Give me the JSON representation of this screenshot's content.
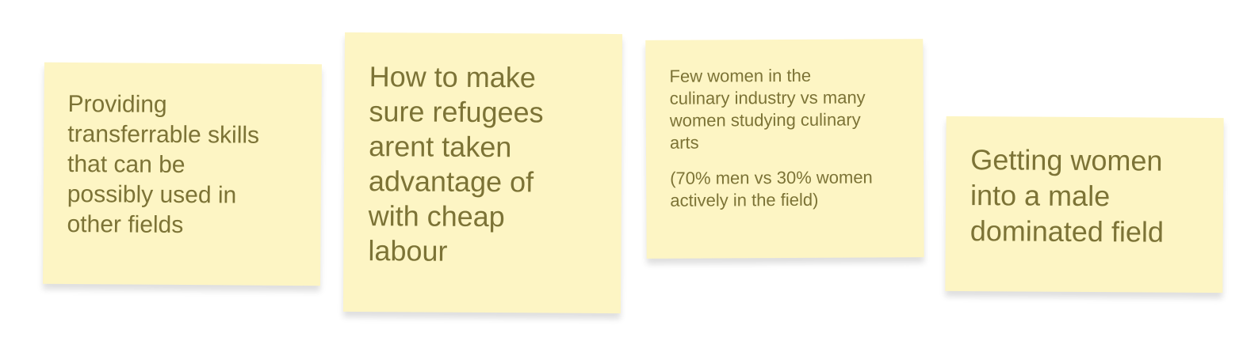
{
  "notes": [
    {
      "text": "Providing\ntransferrable skills\nthat can be\npossibly used in\nother fields"
    },
    {
      "text": "How to make\nsure refugees\narent taken\nadvantage of\nwith cheap\nlabour"
    },
    {
      "text": "Few women in the\nculinary industry vs many\nwomen studying culinary\narts",
      "secondary_text": "(70% men vs 30% women\nactively in the field)"
    },
    {
      "text": "Getting women\ninto a male\ndominated field"
    }
  ],
  "colors": {
    "note_background": "#fdf5c4",
    "note_text": "#7c7336",
    "canvas_background": "#ffffff"
  }
}
